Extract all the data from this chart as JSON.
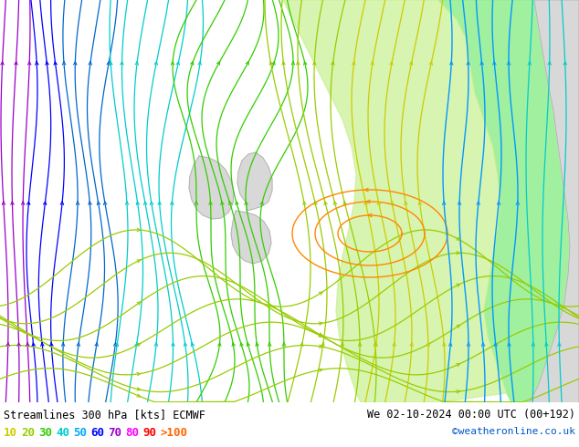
{
  "title_left": "Streamlines 300 hPa [kts] ECMWF",
  "title_right": "We 02-10-2024 00:00 UTC (00+192)",
  "credit": "©weatheronline.co.uk",
  "legend_values": [
    "10",
    "20",
    "30",
    "40",
    "50",
    "60",
    "70",
    "80",
    "90",
    ">100"
  ],
  "legend_colors": [
    "#cccc00",
    "#99cc00",
    "#33cc00",
    "#00cccc",
    "#00aaff",
    "#0000ff",
    "#9900cc",
    "#ff00ff",
    "#ff0000",
    "#ff6600"
  ],
  "ocean_color": "#c8d8e8",
  "land_gray": "#d8d8d8",
  "land_green": "#90ee90",
  "land_lgreen": "#c8f090",
  "figsize": [
    6.34,
    4.9
  ],
  "dpi": 100
}
